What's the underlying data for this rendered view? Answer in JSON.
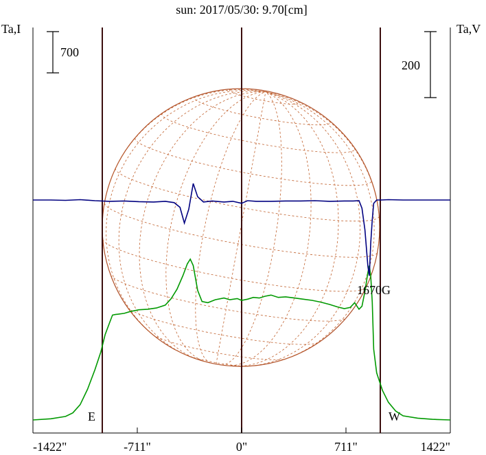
{
  "chart_data": {
    "type": "line",
    "title": "sun: 2017/05/30: 9.70[cm]",
    "left_axis_label": "Ta,I",
    "right_axis_label": "Ta,V",
    "x_unit": "arcsec",
    "xlim": [
      -1422,
      1422
    ],
    "x_ticks": [
      -1422,
      -711,
      0,
      711,
      1422
    ],
    "x_tick_labels": [
      "-1422\"",
      "-711\"",
      "0\"",
      "711\"",
      "1422\""
    ],
    "grid": false,
    "limb_markers": [
      {
        "label": "E",
        "x": -880
      },
      {
        "label": "W",
        "x": 880
      }
    ],
    "center_line_x": 0,
    "scale_bars": [
      {
        "axis": "left",
        "label": "700",
        "value": 700
      },
      {
        "axis": "right",
        "label": "200",
        "value": 200
      }
    ],
    "annotations": [
      {
        "text": "1670G",
        "x": 865
      }
    ],
    "series": [
      {
        "axis": "left",
        "color": "#009900",
        "x": [
          -1422,
          -1300,
          -1200,
          -1150,
          -1100,
          -1050,
          -1000,
          -960,
          -930,
          -900,
          -880,
          -860,
          -840,
          -800,
          -760,
          -700,
          -640,
          -580,
          -520,
          -480,
          -440,
          -400,
          -370,
          -350,
          -330,
          -300,
          -270,
          -230,
          -180,
          -120,
          -80,
          -30,
          0,
          40,
          80,
          120,
          160,
          200,
          250,
          300,
          360,
          420,
          480,
          540,
          600,
          650,
          700,
          740,
          770,
          800,
          820,
          840,
          860,
          870,
          880,
          890,
          900,
          920,
          960,
          1000,
          1050,
          1100,
          1200,
          1300,
          1422
        ],
        "values": [
          0,
          20,
          60,
          120,
          260,
          520,
          850,
          1150,
          1450,
          1650,
          1780,
          1790,
          1795,
          1810,
          1840,
          1870,
          1880,
          1900,
          1950,
          2060,
          2220,
          2450,
          2650,
          2730,
          2620,
          2200,
          2010,
          1990,
          2040,
          2070,
          2040,
          2060,
          2030,
          2050,
          2080,
          2070,
          2100,
          2120,
          2080,
          2090,
          2070,
          2050,
          2030,
          2000,
          1960,
          1920,
          1890,
          1910,
          1990,
          1880,
          1930,
          2180,
          2500,
          2620,
          2440,
          2000,
          1200,
          800,
          500,
          300,
          150,
          70,
          30,
          10,
          0
        ]
      },
      {
        "axis": "right",
        "color": "#000080",
        "x": [
          -1422,
          -1300,
          -1200,
          -1100,
          -1000,
          -900,
          -800,
          -700,
          -600,
          -520,
          -460,
          -420,
          -390,
          -360,
          -330,
          -300,
          -260,
          -200,
          -120,
          -60,
          0,
          40,
          100,
          200,
          300,
          400,
          500,
          600,
          700,
          760,
          800,
          820,
          840,
          860,
          870,
          880,
          890,
          900,
          920,
          950,
          1000,
          1100,
          1200,
          1300,
          1422
        ],
        "values": [
          0,
          0,
          -1,
          1,
          -2,
          -4,
          -3,
          -5,
          -6,
          -4,
          -8,
          -22,
          -70,
          -28,
          50,
          10,
          -6,
          -3,
          -6,
          -4,
          -10,
          -2,
          -4,
          -4,
          -3,
          -3,
          -2,
          -4,
          -3,
          -3,
          -2,
          -25,
          -90,
          -200,
          -230,
          -130,
          -60,
          -10,
          0,
          0,
          1,
          0,
          0,
          0,
          0
        ]
      }
    ]
  }
}
